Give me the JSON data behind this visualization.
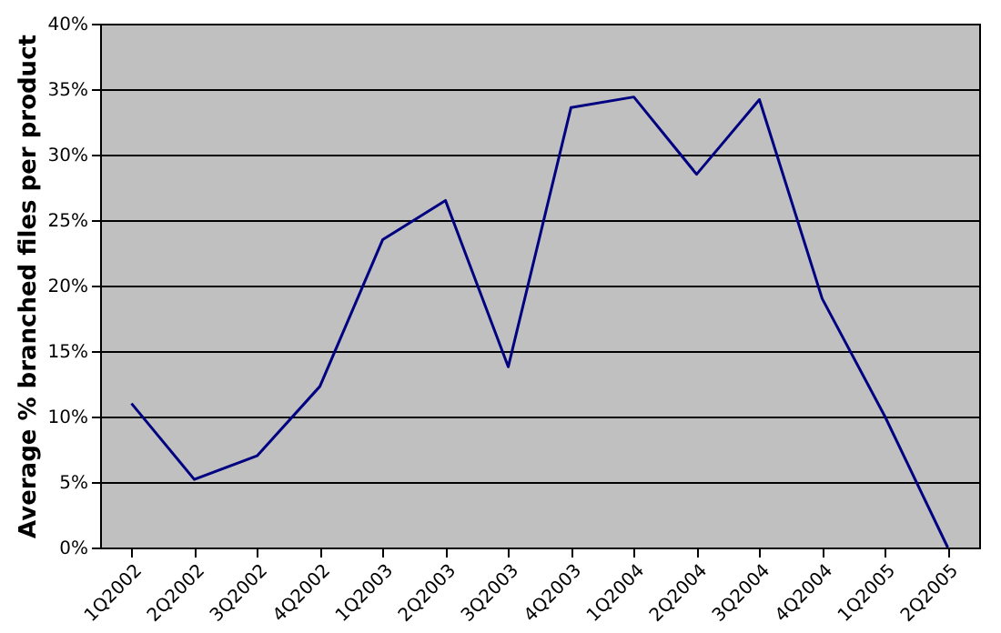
{
  "chart_data": {
    "type": "line",
    "ylabel": "Average % branched files per product",
    "categories": [
      "1Q2002",
      "2Q2002",
      "3Q2002",
      "4Q2002",
      "1Q2003",
      "2Q2003",
      "3Q2003",
      "4Q2003",
      "1Q2004",
      "2Q2004",
      "3Q2004",
      "4Q2004",
      "1Q2005",
      "2Q2005"
    ],
    "series": [
      {
        "color": "#000080",
        "values": [
          11,
          5.2,
          7,
          12.3,
          23.5,
          26.5,
          13.8,
          33.6,
          34.4,
          28.5,
          34.2,
          19,
          10,
          0
        ]
      }
    ],
    "ylim": [
      0,
      40
    ],
    "yticks": [
      {
        "value": 0,
        "label": "0%"
      },
      {
        "value": 5,
        "label": "5%"
      },
      {
        "value": 10,
        "label": "10%"
      },
      {
        "value": 15,
        "label": "15%"
      },
      {
        "value": 20,
        "label": "20%"
      },
      {
        "value": 25,
        "label": "25%"
      },
      {
        "value": 30,
        "label": "30%"
      },
      {
        "value": 35,
        "label": "35%"
      },
      {
        "value": 40,
        "label": "40%"
      }
    ],
    "grid": "y",
    "marker": "none",
    "line_style": "solid",
    "legend": false
  }
}
